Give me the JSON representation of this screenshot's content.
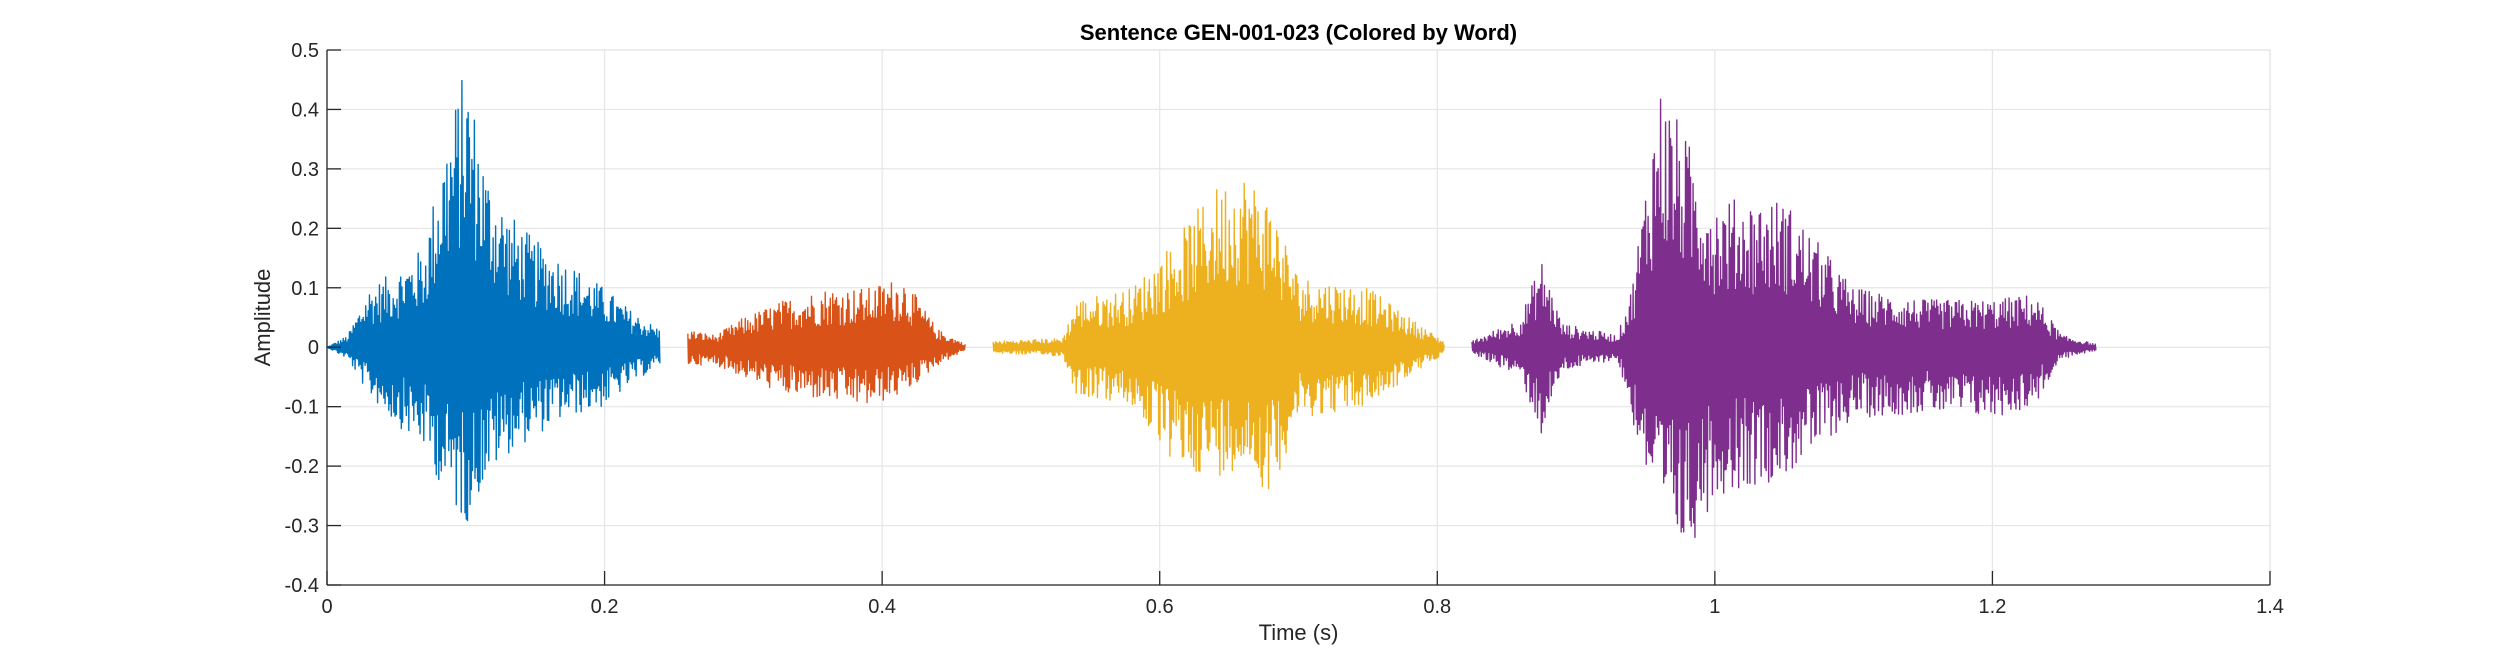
{
  "chart_data": {
    "type": "line",
    "title": "Sentence GEN-001-023 (Colored by Word)",
    "xlabel": "Time (s)",
    "ylabel": "Amplitude",
    "xlim": [
      0,
      1.4
    ],
    "ylim": [
      -0.4,
      0.5
    ],
    "xticks": [
      0,
      0.2,
      0.4,
      0.6,
      0.8,
      1,
      1.2,
      1.4
    ],
    "xtick_labels": [
      "0",
      "0.2",
      "0.4",
      "0.6",
      "0.8",
      "1",
      "1.2",
      "1.4"
    ],
    "yticks": [
      -0.4,
      -0.3,
      -0.2,
      -0.1,
      0,
      0.1,
      0.2,
      0.3,
      0.4,
      0.5
    ],
    "ytick_labels": [
      "-0.4",
      "-0.3",
      "-0.2",
      "-0.1",
      "0",
      "0.1",
      "0.2",
      "0.3",
      "0.4",
      "0.5"
    ],
    "grid": true,
    "series": [
      {
        "color": "#0072BD",
        "start": 0.0,
        "end": 0.24,
        "envelope": [
          {
            "t": 0.0,
            "pos": 0.0,
            "neg": 0.0
          },
          {
            "t": 0.015,
            "pos": 0.02,
            "neg": -0.02
          },
          {
            "t": 0.03,
            "pos": 0.1,
            "neg": -0.08
          },
          {
            "t": 0.05,
            "pos": 0.13,
            "neg": -0.13
          },
          {
            "t": 0.07,
            "pos": 0.17,
            "neg": -0.17
          },
          {
            "t": 0.085,
            "pos": 0.35,
            "neg": -0.25
          },
          {
            "t": 0.1,
            "pos": 0.48,
            "neg": -0.3
          },
          {
            "t": 0.115,
            "pos": 0.3,
            "neg": -0.22
          },
          {
            "t": 0.13,
            "pos": 0.23,
            "neg": -0.18
          },
          {
            "t": 0.15,
            "pos": 0.18,
            "neg": -0.15
          },
          {
            "t": 0.17,
            "pos": 0.15,
            "neg": -0.12
          },
          {
            "t": 0.2,
            "pos": 0.1,
            "neg": -0.1
          },
          {
            "t": 0.22,
            "pos": 0.06,
            "neg": -0.06
          },
          {
            "t": 0.24,
            "pos": 0.03,
            "neg": -0.03
          }
        ]
      },
      {
        "color": "#D95319",
        "start": 0.26,
        "end": 0.46,
        "envelope": [
          {
            "t": 0.26,
            "pos": 0.03,
            "neg": -0.03
          },
          {
            "t": 0.28,
            "pos": 0.02,
            "neg": -0.03
          },
          {
            "t": 0.3,
            "pos": 0.05,
            "neg": -0.05
          },
          {
            "t": 0.33,
            "pos": 0.08,
            "neg": -0.08
          },
          {
            "t": 0.36,
            "pos": 0.1,
            "neg": -0.09
          },
          {
            "t": 0.39,
            "pos": 0.1,
            "neg": -0.1
          },
          {
            "t": 0.415,
            "pos": 0.12,
            "neg": -0.08
          },
          {
            "t": 0.44,
            "pos": 0.03,
            "neg": -0.03
          },
          {
            "t": 0.46,
            "pos": 0.005,
            "neg": -0.005
          }
        ]
      },
      {
        "color": "#EDB120",
        "start": 0.48,
        "end": 0.805,
        "envelope": [
          {
            "t": 0.48,
            "pos": 0.01,
            "neg": -0.01
          },
          {
            "t": 0.53,
            "pos": 0.015,
            "neg": -0.015
          },
          {
            "t": 0.54,
            "pos": 0.08,
            "neg": -0.08
          },
          {
            "t": 0.58,
            "pos": 0.1,
            "neg": -0.1
          },
          {
            "t": 0.61,
            "pos": 0.18,
            "neg": -0.2
          },
          {
            "t": 0.64,
            "pos": 0.27,
            "neg": -0.22
          },
          {
            "t": 0.66,
            "pos": 0.3,
            "neg": -0.2
          },
          {
            "t": 0.68,
            "pos": 0.25,
            "neg": -0.25
          },
          {
            "t": 0.7,
            "pos": 0.12,
            "neg": -0.12
          },
          {
            "t": 0.75,
            "pos": 0.1,
            "neg": -0.1
          },
          {
            "t": 0.78,
            "pos": 0.05,
            "neg": -0.05
          },
          {
            "t": 0.805,
            "pos": 0.01,
            "neg": -0.01
          }
        ]
      },
      {
        "color": "#7E2F8E",
        "start": 0.825,
        "end": 1.275,
        "envelope": [
          {
            "t": 0.825,
            "pos": 0.01,
            "neg": -0.01
          },
          {
            "t": 0.86,
            "pos": 0.05,
            "neg": -0.05
          },
          {
            "t": 0.875,
            "pos": 0.15,
            "neg": -0.15
          },
          {
            "t": 0.89,
            "pos": 0.04,
            "neg": -0.04
          },
          {
            "t": 0.93,
            "pos": 0.02,
            "neg": -0.02
          },
          {
            "t": 0.94,
            "pos": 0.1,
            "neg": -0.12
          },
          {
            "t": 0.96,
            "pos": 0.45,
            "neg": -0.3
          },
          {
            "t": 0.98,
            "pos": 0.35,
            "neg": -0.35
          },
          {
            "t": 1.0,
            "pos": 0.25,
            "neg": -0.25
          },
          {
            "t": 1.05,
            "pos": 0.25,
            "neg": -0.22
          },
          {
            "t": 1.1,
            "pos": 0.1,
            "neg": -0.12
          },
          {
            "t": 1.15,
            "pos": 0.08,
            "neg": -0.11
          },
          {
            "t": 1.2,
            "pos": 0.08,
            "neg": -0.12
          },
          {
            "t": 1.23,
            "pos": 0.09,
            "neg": -0.1
          },
          {
            "t": 1.25,
            "pos": 0.02,
            "neg": -0.02
          },
          {
            "t": 1.275,
            "pos": 0.005,
            "neg": -0.005
          }
        ]
      }
    ]
  }
}
